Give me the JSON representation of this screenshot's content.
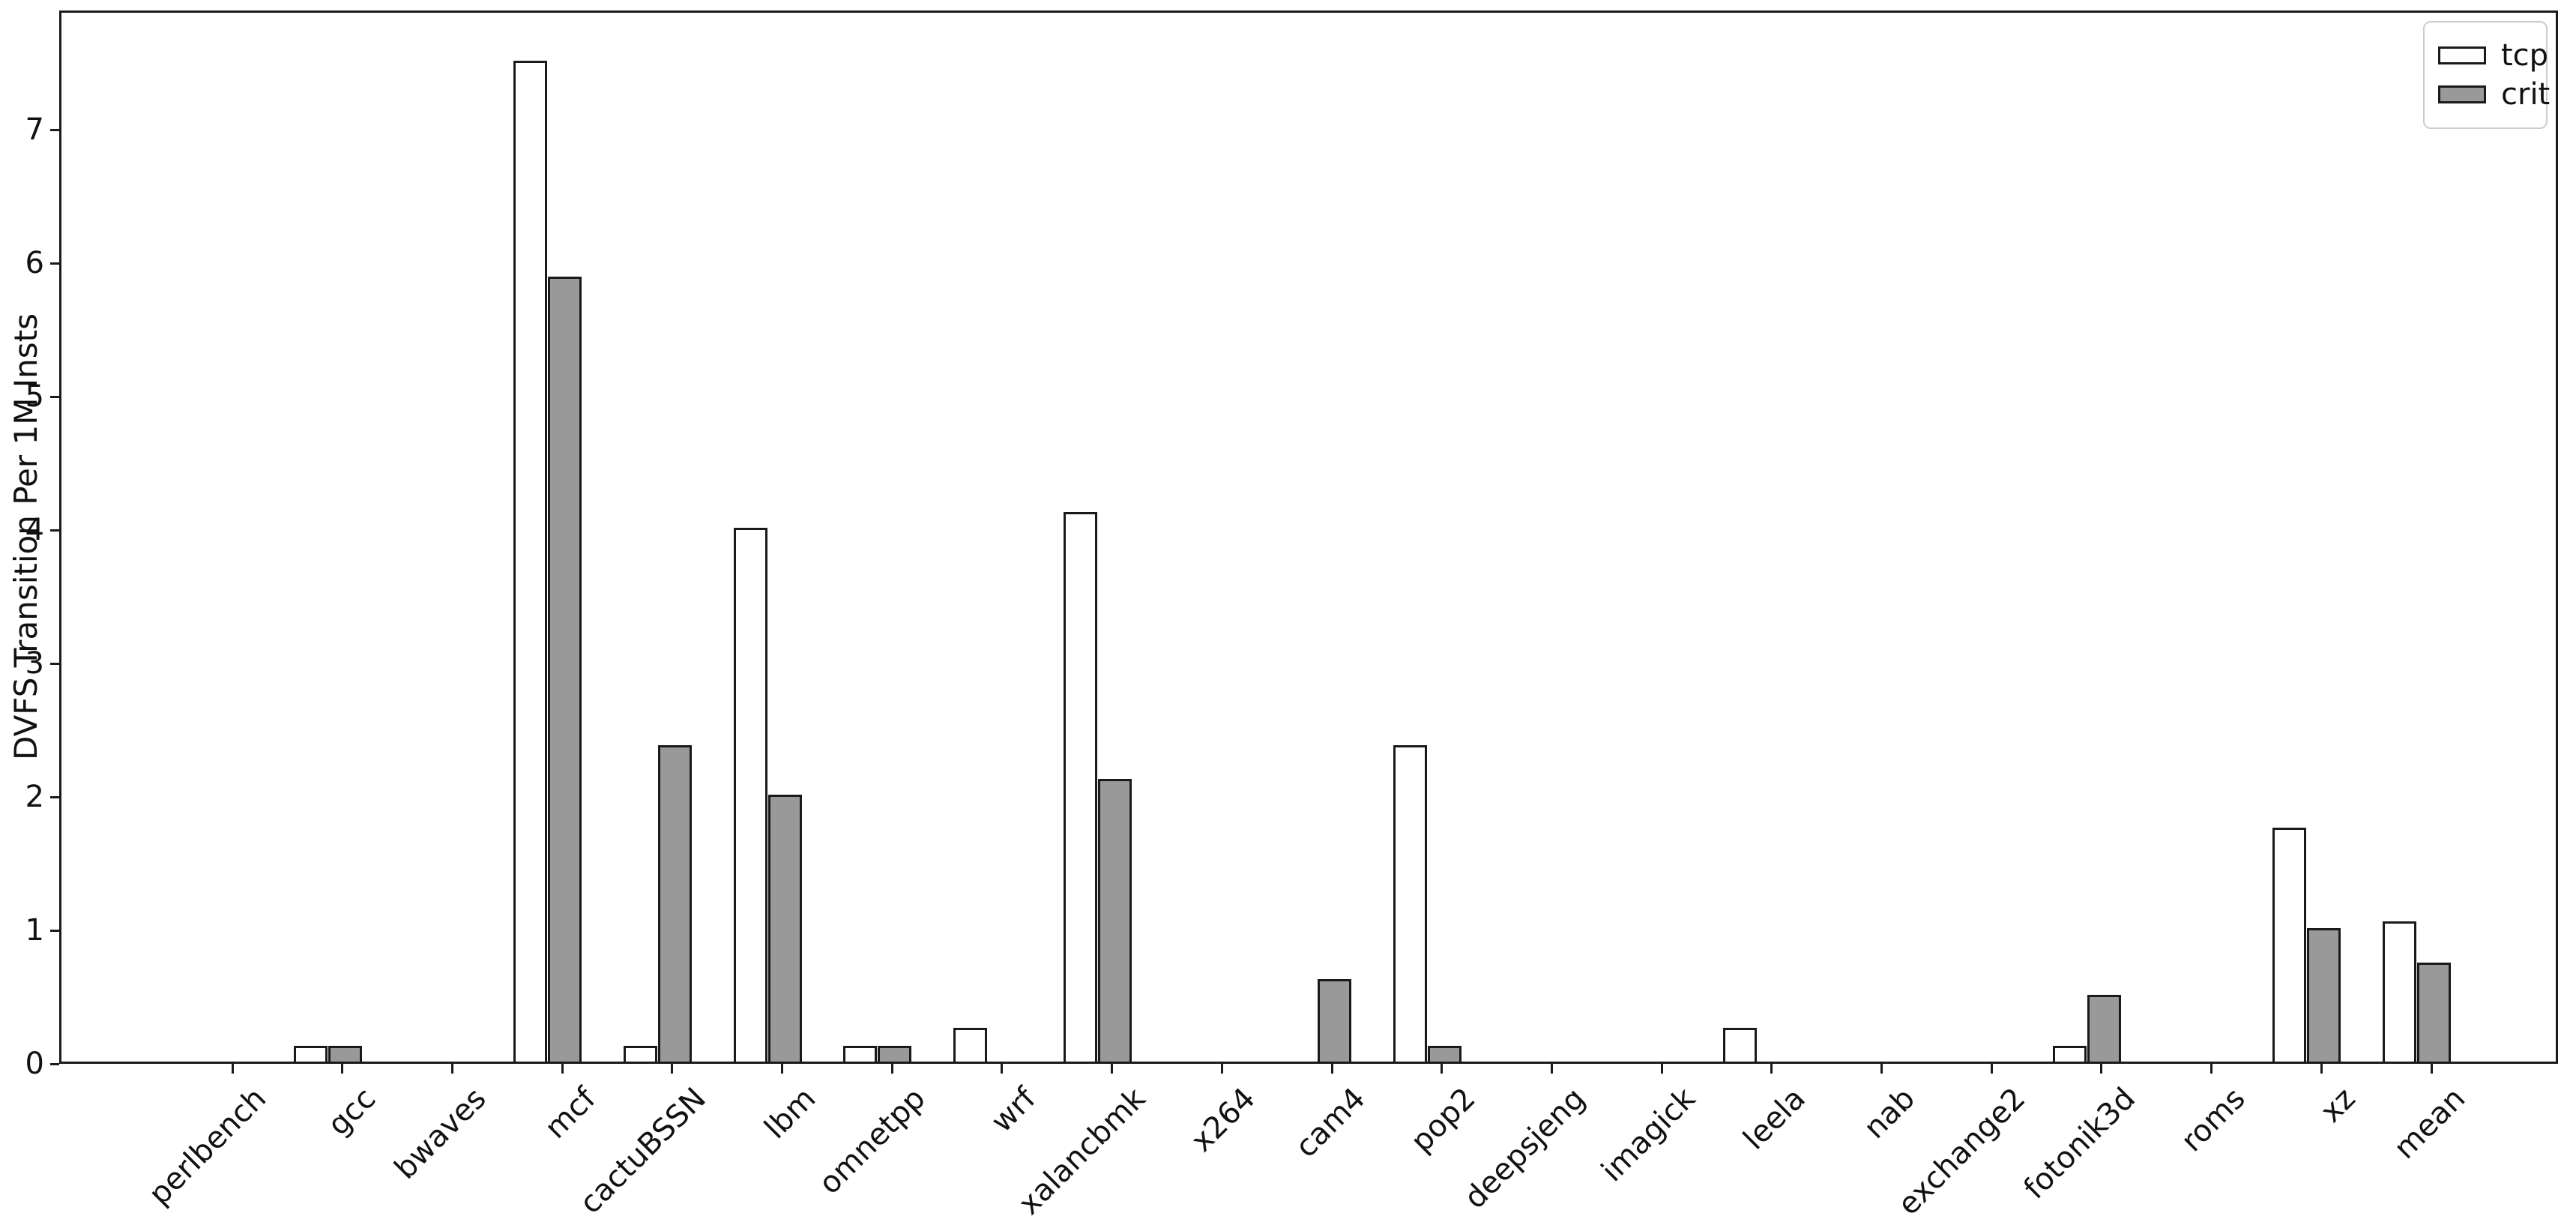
{
  "chart_data": {
    "type": "bar",
    "title": "",
    "xlabel": "",
    "ylabel": "DVFS Transition Per 1M Insts",
    "ylim": [
      0,
      7.89
    ],
    "yticks": [
      0,
      1,
      2,
      3,
      4,
      5,
      6,
      7
    ],
    "grid": false,
    "legend_position": "upper right",
    "categories": [
      "perlbench",
      "gcc",
      "bwaves",
      "mcf",
      "cactuBSSN",
      "lbm",
      "omnetpp",
      "wrf",
      "xalancbmk",
      "x264",
      "cam4",
      "pop2",
      "deepsjeng",
      "imagick",
      "leela",
      "nab",
      "exchange2",
      "fotonik3d",
      "roms",
      "xz",
      "mean"
    ],
    "series": [
      {
        "name": "tcp",
        "fill": "#ffffff",
        "edge": "#1a1a1a",
        "values": [
          0,
          0.12,
          0,
          7.5,
          0.12,
          4.0,
          0.12,
          0.25,
          4.12,
          0,
          0,
          2.37,
          0,
          0,
          0.25,
          0,
          0,
          0.12,
          0,
          1.75,
          1.05
        ]
      },
      {
        "name": "crit",
        "fill": "#999999",
        "edge": "#1a1a1a",
        "values": [
          0,
          0.12,
          0,
          5.88,
          2.37,
          2.0,
          0.12,
          0,
          2.12,
          0,
          0.62,
          0.12,
          0,
          0,
          0,
          0,
          0,
          0.5,
          0,
          1.0,
          0.74
        ]
      }
    ]
  }
}
